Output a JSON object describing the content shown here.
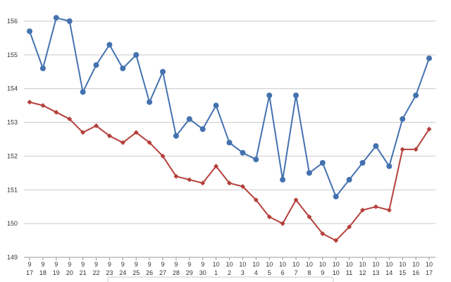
{
  "chart_data": {
    "type": "line",
    "categories_month": [
      "9",
      "9",
      "9",
      "9",
      "9",
      "9",
      "9",
      "9",
      "9",
      "9",
      "9",
      "9",
      "9",
      "9",
      "10",
      "10",
      "10",
      "10",
      "10",
      "10",
      "10",
      "10",
      "10",
      "10",
      "10",
      "10",
      "10",
      "10",
      "10",
      "10",
      "10"
    ],
    "categories_day": [
      "17",
      "18",
      "19",
      "20",
      "21",
      "22",
      "23",
      "24",
      "25",
      "26",
      "27",
      "28",
      "29",
      "30",
      "1",
      "2",
      "3",
      "4",
      "5",
      "6",
      "7",
      "8",
      "9",
      "10",
      "11",
      "12",
      "13",
      "14",
      "15",
      "16",
      "17"
    ],
    "series": [
      {
        "color": "#4472b0",
        "marker": "circle",
        "values": [
          155.7,
          154.6,
          156.1,
          156.0,
          153.9,
          154.7,
          155.3,
          154.6,
          155.0,
          153.6,
          154.5,
          152.6,
          153.1,
          152.8,
          153.5,
          152.4,
          152.1,
          151.9,
          153.8,
          151.3,
          153.8,
          151.5,
          151.8,
          150.8,
          151.3,
          151.8,
          152.3,
          151.7,
          153.1,
          153.8,
          154.9
        ]
      },
      {
        "color": "#b5403c",
        "marker": "diamond",
        "values": [
          153.6,
          153.5,
          153.3,
          153.1,
          152.7,
          152.9,
          152.6,
          152.4,
          152.7,
          152.4,
          152.0,
          151.4,
          151.3,
          151.2,
          151.7,
          151.2,
          151.1,
          150.7,
          150.2,
          150.0,
          150.7,
          150.2,
          149.7,
          149.5,
          149.9,
          150.4,
          150.5,
          150.4,
          152.2,
          152.2,
          152.8
        ]
      }
    ],
    "y_ticks": [
      "156",
      "155",
      "154",
      "153",
      "152",
      "151",
      "150",
      "149"
    ],
    "ylim": [
      149,
      156
    ],
    "grid": true,
    "legend": "bottom-center"
  }
}
